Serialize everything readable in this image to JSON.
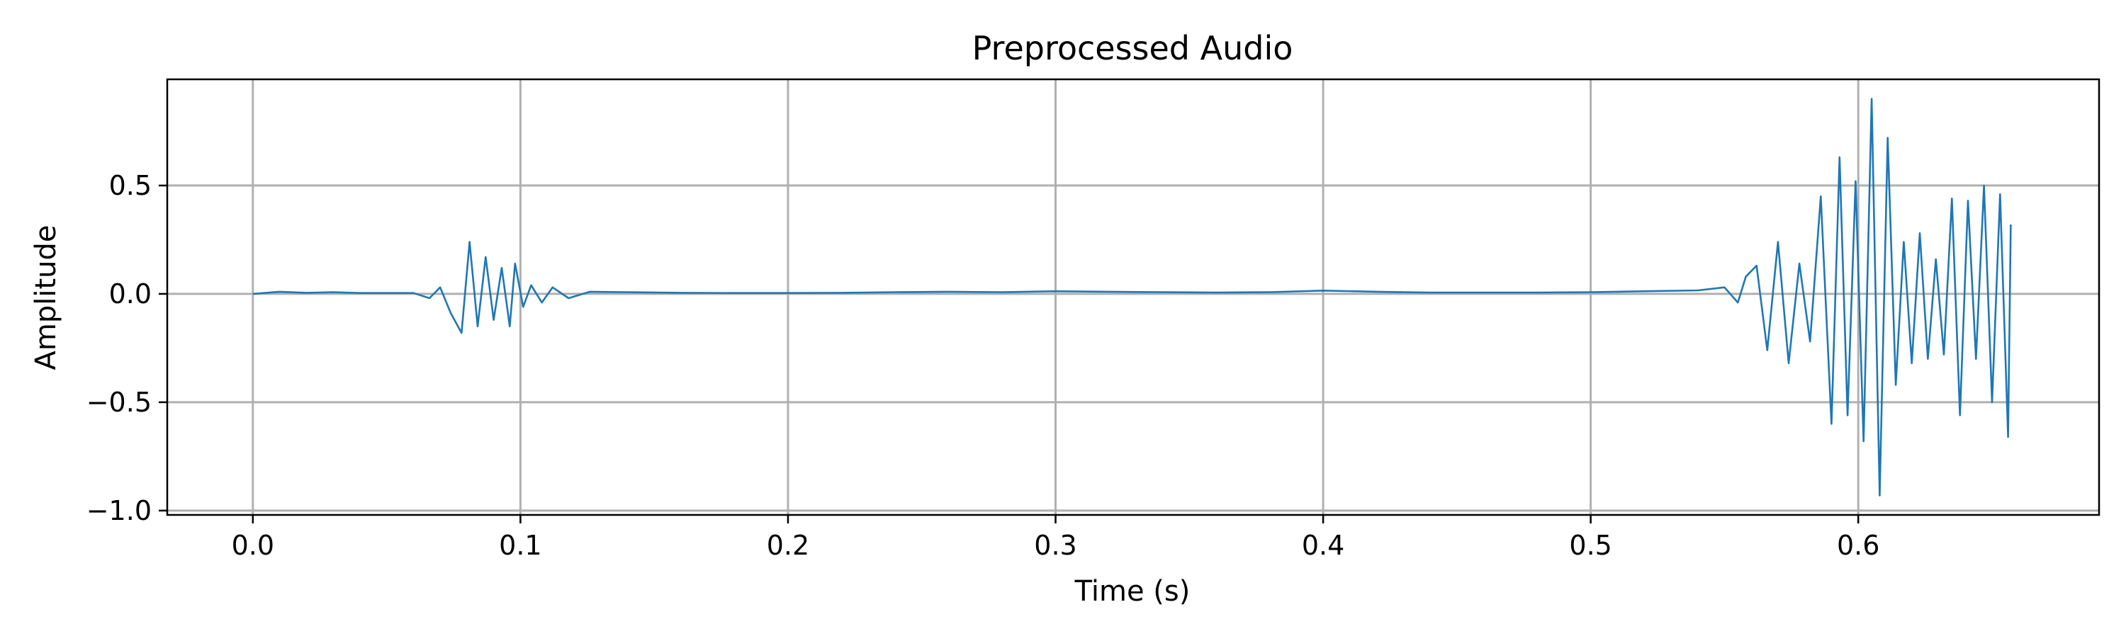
{
  "chart_data": {
    "type": "line",
    "title": "Preprocessed Audio",
    "xlabel": "Time (s)",
    "ylabel": "Amplitude",
    "xlim": [
      -0.032,
      0.69
    ],
    "ylim": [
      -1.02,
      0.99
    ],
    "grid": true,
    "x_ticks": [
      0.0,
      0.1,
      0.2,
      0.3,
      0.4,
      0.5,
      0.6
    ],
    "x_tick_labels": [
      "0.0",
      "0.1",
      "0.2",
      "0.3",
      "0.4",
      "0.5",
      "0.6"
    ],
    "y_ticks": [
      0.5,
      0.0,
      -0.5,
      -1.0
    ],
    "y_tick_labels": [
      "0.5",
      "0.0",
      "−0.5",
      "−1.0"
    ],
    "series": [
      {
        "color": "#1f77b4",
        "points": [
          [
            0.0,
            0.0
          ],
          [
            0.01,
            0.01
          ],
          [
            0.02,
            0.005
          ],
          [
            0.03,
            0.008
          ],
          [
            0.04,
            0.004
          ],
          [
            0.05,
            0.004
          ],
          [
            0.06,
            0.004
          ],
          [
            0.066,
            -0.02
          ],
          [
            0.07,
            0.03
          ],
          [
            0.074,
            -0.09
          ],
          [
            0.078,
            -0.18
          ],
          [
            0.081,
            0.24
          ],
          [
            0.084,
            -0.15
          ],
          [
            0.087,
            0.17
          ],
          [
            0.09,
            -0.12
          ],
          [
            0.093,
            0.12
          ],
          [
            0.096,
            -0.15
          ],
          [
            0.098,
            0.14
          ],
          [
            0.101,
            -0.06
          ],
          [
            0.104,
            0.04
          ],
          [
            0.108,
            -0.04
          ],
          [
            0.112,
            0.03
          ],
          [
            0.118,
            -0.02
          ],
          [
            0.126,
            0.01
          ],
          [
            0.14,
            0.008
          ],
          [
            0.16,
            0.005
          ],
          [
            0.18,
            0.004
          ],
          [
            0.2,
            0.004
          ],
          [
            0.22,
            0.005
          ],
          [
            0.24,
            0.008
          ],
          [
            0.26,
            0.01
          ],
          [
            0.28,
            0.008
          ],
          [
            0.3,
            0.012
          ],
          [
            0.32,
            0.01
          ],
          [
            0.34,
            0.008
          ],
          [
            0.36,
            0.006
          ],
          [
            0.38,
            0.008
          ],
          [
            0.4,
            0.015
          ],
          [
            0.42,
            0.01
          ],
          [
            0.44,
            0.006
          ],
          [
            0.46,
            0.006
          ],
          [
            0.48,
            0.006
          ],
          [
            0.5,
            0.008
          ],
          [
            0.52,
            0.012
          ],
          [
            0.54,
            0.016
          ],
          [
            0.55,
            0.03
          ],
          [
            0.555,
            -0.04
          ],
          [
            0.558,
            0.08
          ],
          [
            0.562,
            0.13
          ],
          [
            0.566,
            -0.26
          ],
          [
            0.57,
            0.24
          ],
          [
            0.574,
            -0.32
          ],
          [
            0.578,
            0.14
          ],
          [
            0.582,
            -0.22
          ],
          [
            0.586,
            0.45
          ],
          [
            0.59,
            -0.6
          ],
          [
            0.593,
            0.63
          ],
          [
            0.596,
            -0.56
          ],
          [
            0.599,
            0.52
          ],
          [
            0.602,
            -0.68
          ],
          [
            0.605,
            0.9
          ],
          [
            0.608,
            -0.93
          ],
          [
            0.611,
            0.72
          ],
          [
            0.614,
            -0.42
          ],
          [
            0.617,
            0.24
          ],
          [
            0.62,
            -0.32
          ],
          [
            0.623,
            0.28
          ],
          [
            0.626,
            -0.3
          ],
          [
            0.629,
            0.16
          ],
          [
            0.632,
            -0.28
          ],
          [
            0.635,
            0.44
          ],
          [
            0.638,
            -0.56
          ],
          [
            0.641,
            0.43
          ],
          [
            0.644,
            -0.3
          ],
          [
            0.647,
            0.5
          ],
          [
            0.65,
            -0.5
          ],
          [
            0.653,
            0.46
          ],
          [
            0.656,
            -0.66
          ],
          [
            0.657,
            0.32
          ]
        ]
      }
    ]
  }
}
